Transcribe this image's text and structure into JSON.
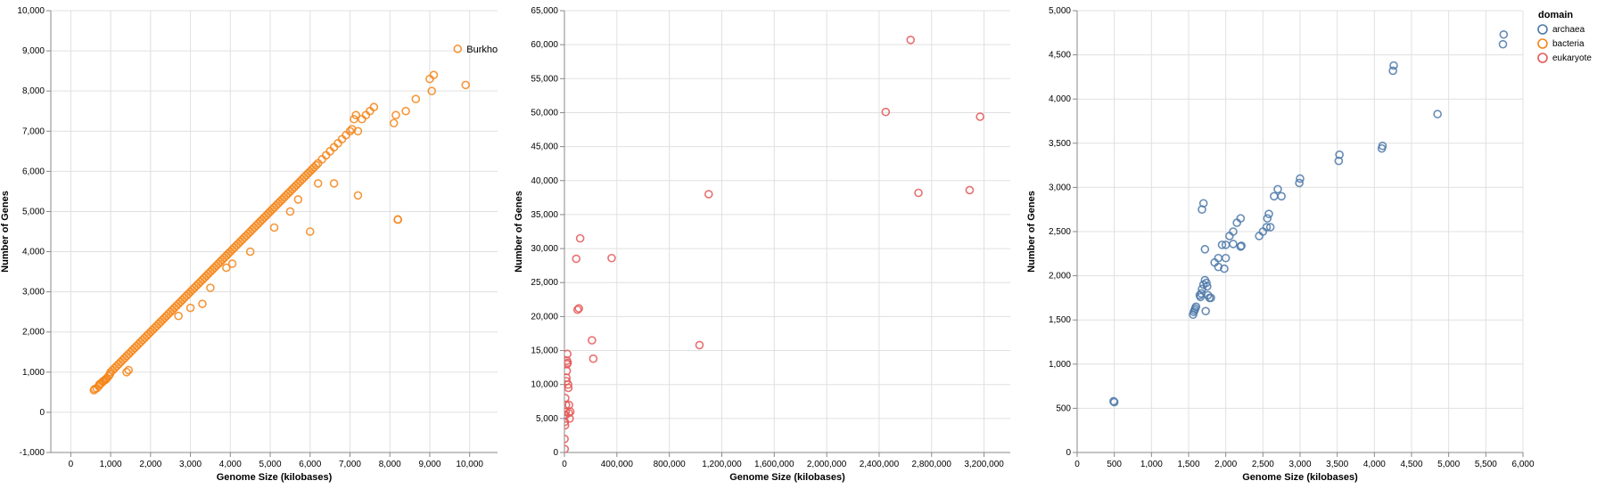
{
  "chart_data": [
    {
      "type": "scatter",
      "id": "bacteria",
      "xlabel": "Genome Size (kilobases)",
      "ylabel": "Number of Genes",
      "xlim": [
        -500,
        10700
      ],
      "ylim": [
        -1000,
        10000
      ],
      "xticks": [
        0,
        1000,
        2000,
        3000,
        4000,
        5000,
        6000,
        7000,
        8000,
        9000,
        10000
      ],
      "xtick_labels": [
        "0",
        "1,000",
        "2,000",
        "3,000",
        "4,000",
        "5,000",
        "6,000",
        "7,000",
        "8,000",
        "9,000",
        "10,000"
      ],
      "yticks": [
        -1000,
        0,
        1000,
        2000,
        3000,
        4000,
        5000,
        6000,
        7000,
        8000,
        9000,
        10000
      ],
      "ytick_labels": [
        "-1,000",
        "0",
        "1,000",
        "2,000",
        "3,000",
        "4,000",
        "5,000",
        "6,000",
        "7,000",
        "8,000",
        "9,000",
        "10,000"
      ],
      "grid": true,
      "color": "#f58518",
      "annotation": {
        "text": "Burkho",
        "x": 9700,
        "y": 9050
      },
      "series": [
        {
          "x": [
            580,
            600,
            650,
            700,
            720,
            760,
            800,
            820,
            850,
            880,
            900,
            950,
            980,
            1000,
            1050,
            1100,
            1150,
            1200,
            1250,
            1300,
            1350,
            1400,
            1450,
            1500,
            1550,
            1600,
            1650,
            1700,
            1750,
            1800,
            1850,
            1900,
            1950,
            2000,
            2050,
            2100,
            2150,
            2200,
            2250,
            2300,
            2350,
            2400,
            2450,
            2500,
            2550,
            2600,
            2650,
            2700,
            2750,
            2800,
            2850,
            2900,
            2950,
            3000,
            3050,
            3100,
            3150,
            3200,
            3250,
            3300,
            3350,
            3400,
            3450,
            3500,
            3550,
            3600,
            3650,
            3700,
            3750,
            3800,
            3850,
            3900,
            3950,
            4000,
            4050,
            4100,
            4150,
            4200,
            4250,
            4300,
            4350,
            4400,
            4450,
            4500,
            4550,
            4600,
            4650,
            4700,
            4750,
            4800,
            4850,
            4900,
            4950,
            5000,
            5050,
            5100,
            5150,
            5200,
            5250,
            5300,
            5350,
            5400,
            5450,
            5500,
            5550,
            5600,
            5650,
            5700,
            5750,
            5800,
            5850,
            5900,
            5950,
            6000,
            6050,
            6100,
            6150,
            6200,
            6300,
            6400,
            6500,
            6600,
            6700,
            6800,
            6900,
            7000,
            7050,
            7100,
            7150,
            7200,
            7300,
            7400,
            7500,
            7600,
            8100,
            8150,
            8200,
            8400,
            8650,
            9000,
            9050,
            9100,
            9700,
            9900,
            1400,
            1450,
            3000,
            3300,
            3500,
            4050,
            4500,
            5500,
            6000,
            6600,
            7200,
            8200,
            2700,
            3900,
            5100,
            5700,
            6200
          ],
          "y": [
            550,
            580,
            600,
            650,
            700,
            720,
            760,
            780,
            800,
            820,
            850,
            900,
            950,
            1000,
            1050,
            1100,
            1150,
            1200,
            1250,
            1300,
            1350,
            1400,
            1450,
            1500,
            1550,
            1600,
            1650,
            1700,
            1750,
            1800,
            1850,
            1900,
            1950,
            2000,
            2050,
            2100,
            2150,
            2200,
            2250,
            2300,
            2350,
            2400,
            2450,
            2500,
            2550,
            2600,
            2650,
            2700,
            2750,
            2800,
            2850,
            2900,
            2950,
            3000,
            3050,
            3100,
            3150,
            3200,
            3250,
            3300,
            3350,
            3400,
            3450,
            3500,
            3550,
            3600,
            3650,
            3700,
            3750,
            3800,
            3850,
            3900,
            3950,
            4000,
            4050,
            4100,
            4150,
            4200,
            4250,
            4300,
            4350,
            4400,
            4450,
            4500,
            4550,
            4600,
            4650,
            4700,
            4750,
            4800,
            4850,
            4900,
            4950,
            5000,
            5050,
            5100,
            5150,
            5200,
            5250,
            5300,
            5350,
            5400,
            5450,
            5500,
            5550,
            5600,
            5650,
            5700,
            5750,
            5800,
            5850,
            5900,
            5950,
            6000,
            6050,
            6100,
            6150,
            6200,
            6300,
            6400,
            6500,
            6600,
            6700,
            6800,
            6900,
            7000,
            7050,
            7300,
            7400,
            7000,
            7300,
            7400,
            7500,
            7600,
            7200,
            7400,
            4800,
            7500,
            7800,
            8300,
            8000,
            8400,
            9050,
            8150,
            1000,
            1050,
            2600,
            2700,
            3100,
            3700,
            4000,
            5000,
            4500,
            5700,
            5400,
            4800,
            2400,
            3600,
            4600,
            5300,
            5700
          ]
        }
      ]
    },
    {
      "type": "scatter",
      "id": "eukaryote",
      "xlabel": "Genome Size (kilobases)",
      "ylabel": "Number of Genes",
      "xlim": [
        0,
        3400000
      ],
      "ylim": [
        0,
        65000
      ],
      "xticks": [
        0,
        400000,
        800000,
        1200000,
        1600000,
        2000000,
        2400000,
        2800000,
        3200000
      ],
      "xtick_labels": [
        "0",
        "400,000",
        "800,000",
        "1,200,000",
        "1,600,000",
        "2,000,000",
        "2,400,000",
        "2,800,000",
        "3,200,000"
      ],
      "yticks": [
        0,
        5000,
        10000,
        15000,
        20000,
        25000,
        30000,
        35000,
        40000,
        45000,
        50000,
        55000,
        60000,
        65000
      ],
      "ytick_labels": [
        "0",
        "5,000",
        "10,000",
        "15,000",
        "20,000",
        "25,000",
        "30,000",
        "35,000",
        "40,000",
        "45,000",
        "50,000",
        "55,000",
        "60,000",
        "65,000"
      ],
      "grid": true,
      "color": "#e45756",
      "series": [
        {
          "x": [
            2000,
            5000,
            8000,
            10000,
            12000,
            15000,
            18000,
            20000,
            22000,
            25000,
            28000,
            30000,
            33000,
            35000,
            40000,
            45000,
            90000,
            100000,
            110000,
            120000,
            360000,
            210000,
            220000,
            1030000,
            1100000,
            2450000,
            2640000,
            2700000,
            3090000,
            3170000,
            1000,
            3000,
            6000,
            15000,
            20000
          ],
          "y": [
            500,
            4000,
            5500,
            6000,
            7000,
            10500,
            12000,
            13500,
            14500,
            13200,
            10000,
            9500,
            5800,
            7000,
            5000,
            6000,
            28500,
            21000,
            21200,
            31500,
            28600,
            16500,
            13800,
            15800,
            38000,
            50100,
            60700,
            38200,
            38600,
            49400,
            2000,
            4500,
            8000,
            11000,
            13000
          ]
        }
      ]
    },
    {
      "type": "scatter",
      "id": "archaea",
      "xlabel": "Genome Size (kilobases)",
      "ylabel": "Number of Genes",
      "xlim": [
        0,
        6000
      ],
      "ylim": [
        0,
        5000
      ],
      "xticks": [
        0,
        500,
        1000,
        1500,
        2000,
        2500,
        3000,
        3500,
        4000,
        4500,
        5000,
        5500,
        6000
      ],
      "xtick_labels": [
        "0",
        "500",
        "1,000",
        "1,500",
        "2,000",
        "2,500",
        "3,000",
        "3,500",
        "4,000",
        "4,500",
        "5,000",
        "5,500",
        "6,000"
      ],
      "yticks": [
        0,
        500,
        1000,
        1500,
        2000,
        2500,
        3000,
        3500,
        4000,
        4500,
        5000
      ],
      "ytick_labels": [
        "0",
        "500",
        "1,000",
        "1,500",
        "2,000",
        "2,500",
        "3,000",
        "3,500",
        "4,000",
        "4,500",
        "5,000"
      ],
      "grid": true,
      "color": "#4c78a8",
      "series": [
        {
          "x": [
            490,
            500,
            1560,
            1570,
            1580,
            1590,
            1600,
            1650,
            1660,
            1670,
            1680,
            1700,
            1720,
            1730,
            1740,
            1750,
            1760,
            1780,
            1800,
            1850,
            1900,
            1950,
            2000,
            2050,
            2100,
            2150,
            2200,
            2210,
            2450,
            2500,
            2550,
            2560,
            2580,
            2650,
            2700,
            2750,
            2990,
            3000,
            3520,
            3530,
            4100,
            4110,
            4250,
            4260,
            4850,
            5730,
            5740,
            1680,
            1700,
            1720,
            1900,
            1980,
            2000,
            2100,
            2200,
            2600
          ],
          "y": [
            580,
            570,
            1560,
            1590,
            1610,
            1630,
            1650,
            1780,
            1760,
            1800,
            1850,
            1900,
            1950,
            1600,
            1920,
            1880,
            1780,
            1750,
            1750,
            2150,
            2200,
            2350,
            2200,
            2450,
            2500,
            2600,
            2650,
            2340,
            2450,
            2500,
            2550,
            2650,
            2700,
            2900,
            2980,
            2900,
            3050,
            3100,
            3300,
            3370,
            3440,
            3470,
            4320,
            4380,
            3830,
            4620,
            4730,
            2750,
            2820,
            2300,
            2100,
            2080,
            2350,
            2360,
            2330,
            2550
          ]
        }
      ]
    }
  ],
  "legend": {
    "title": "domain",
    "items": [
      {
        "label": "archaea",
        "color": "#4c78a8"
      },
      {
        "label": "bacteria",
        "color": "#f58518"
      },
      {
        "label": "eukaryote",
        "color": "#e45756"
      }
    ]
  }
}
